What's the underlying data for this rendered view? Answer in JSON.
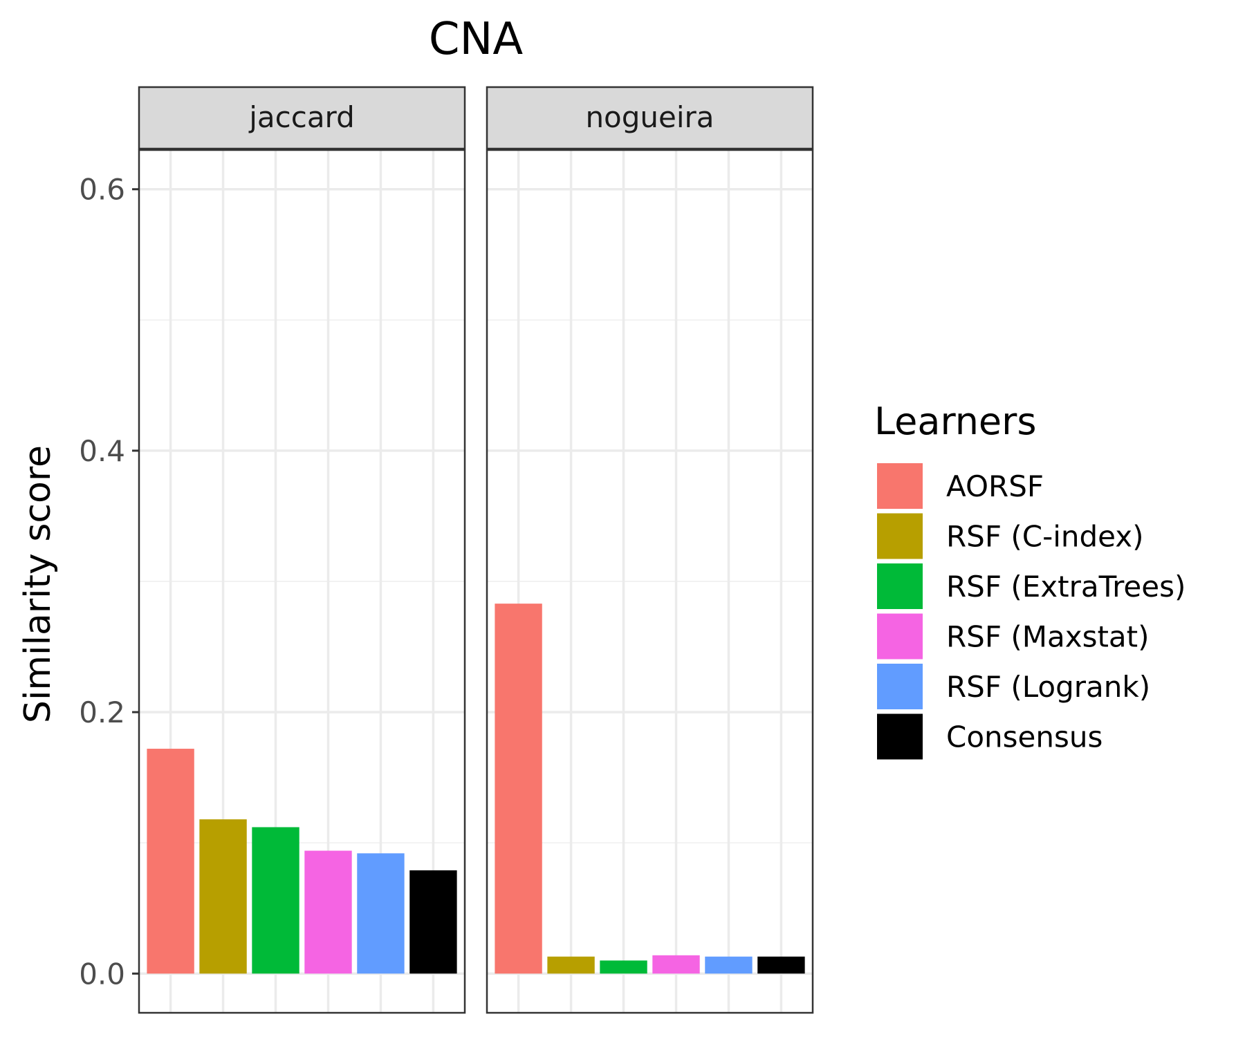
{
  "chart_data": {
    "type": "bar",
    "title": "CNA",
    "ylabel": "Similarity score",
    "xlabel": "",
    "ylim": [
      -0.03,
      0.63
    ],
    "yticks": [
      "0.0",
      "0.2",
      "0.4",
      "0.6"
    ],
    "ytick_values": [
      0.0,
      0.2,
      0.4,
      0.6
    ],
    "grid": true,
    "legend": {
      "title": "Learners",
      "placement": "right"
    },
    "categories": [
      "AORSF",
      "RSF (C-index)",
      "RSF (ExtraTrees)",
      "RSF (Maxstat)",
      "RSF (Logrank)",
      "Consensus"
    ],
    "colors": [
      "#F8766D",
      "#B79F00",
      "#00BA38",
      "#F564E3",
      "#619CFF",
      "#000000"
    ],
    "panels": [
      {
        "name": "jaccard",
        "values": [
          0.172,
          0.118,
          0.112,
          0.094,
          0.092,
          0.079
        ]
      },
      {
        "name": "nogueira",
        "values": [
          0.283,
          0.013,
          0.01,
          0.014,
          0.013,
          0.013
        ]
      }
    ]
  }
}
